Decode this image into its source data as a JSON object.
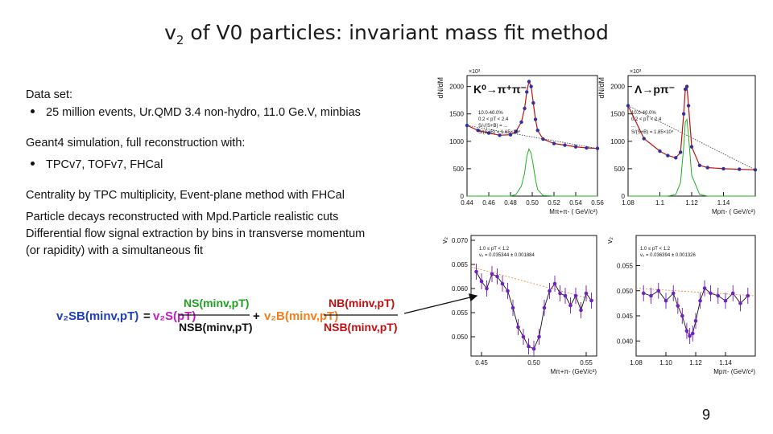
{
  "slide": {
    "title_prefix": "v",
    "title_sub": "2",
    "title_rest": " of V0 particles: invariant mass fit method",
    "page_number": "9"
  },
  "text": {
    "dataset_heading": "Data set:",
    "dataset_bullet": "25 million events, Ur.QMD 3.4 non-hydro, 11.0 Ge.V, minbias",
    "geant_heading": "Geant4 simulation, full reconstruction with:",
    "geant_bullet": "TPCv7, TOFv7, FHCal",
    "centrality": "Centrality by TPC multiplicity, Event-plane method with FHCal",
    "decays": "Particle decays reconstructed with Mpd.Particle realistic cuts",
    "flow_line1": "Differential flow signal extraction by bins in transverse momentum",
    "flow_line2": "(or rapidity) with a simultaneous fit"
  },
  "formula": {
    "lhs": "v₂SB(minv,pT)",
    "term1": "v₂S(pT)",
    "frac1_num": "NS(minv,pT)",
    "frac1_den": "NSB(minv,pT)",
    "plus": "+",
    "term2": "v₂B(minv,pT)",
    "frac2_num": "NB(minv,pT)",
    "frac2_den": "NSB(minv,pT)"
  },
  "chart_data": [
    {
      "type": "line",
      "panel": "K0 mass",
      "exponent": "×10³",
      "ylabel": "dN/dM",
      "xlabel": "Mπ+π- ( GeV/c²)",
      "title": "K⁰→π⁺π⁻",
      "xlim": [
        0.44,
        0.56
      ],
      "ylim": [
        0,
        2200
      ],
      "xticks": [
        "0.44",
        "0.46",
        "0.48",
        "0.50",
        "0.52",
        "0.54",
        "0.56"
      ],
      "yticks": [
        "0",
        "500",
        "1000",
        "1500",
        "2000"
      ],
      "x": [
        0.44,
        0.45,
        0.46,
        0.47,
        0.48,
        0.485,
        0.49,
        0.493,
        0.495,
        0.497,
        0.499,
        0.501,
        0.503,
        0.505,
        0.51,
        0.52,
        0.53,
        0.54,
        0.55,
        0.56
      ],
      "series": [
        {
          "values": [
            1290,
            1200,
            1150,
            1110,
            1120,
            1180,
            1350,
            1600,
            1900,
            2090,
            2000,
            1700,
            1400,
            1200,
            1040,
            960,
            930,
            900,
            880,
            870
          ]
        },
        {
          "values": [
            0,
            0,
            0,
            0,
            0,
            30,
            180,
            420,
            720,
            860,
            780,
            560,
            300,
            120,
            10,
            0,
            0,
            0,
            0,
            0
          ]
        }
      ]
    },
    {
      "type": "line",
      "panel": "Lambda mass",
      "exponent": "×10³",
      "ylabel": "dN/dM",
      "xlabel": "Mpπ- ( GeV/c²)",
      "title": "Λ→pπ⁻",
      "xlim": [
        1.08,
        1.16
      ],
      "ylim": [
        0,
        2200
      ],
      "xticks": [
        "1.08",
        "1.1",
        "1.12",
        "1.14"
      ],
      "yticks": [
        "0",
        "500",
        "1000",
        "1500",
        "2000"
      ],
      "x": [
        1.08,
        1.09,
        1.1,
        1.105,
        1.11,
        1.113,
        1.115,
        1.116,
        1.117,
        1.118,
        1.12,
        1.125,
        1.13,
        1.14,
        1.15,
        1.16
      ],
      "series": [
        {
          "values": [
            1650,
            1050,
            820,
            740,
            700,
            800,
            1500,
            1950,
            2000,
            1650,
            900,
            560,
            520,
            500,
            490,
            480
          ]
        },
        {
          "values": [
            0,
            0,
            0,
            0,
            30,
            250,
            900,
            1350,
            1400,
            1100,
            380,
            30,
            0,
            0,
            0,
            0
          ]
        }
      ]
    },
    {
      "type": "scatter",
      "panel": "K0 v2",
      "ylabel": "v₂",
      "xlabel": "Mπ+π- (GeV/c²)",
      "xlim": [
        0.44,
        0.56
      ],
      "ylim": [
        0.046,
        0.071
      ],
      "xticks": [
        "0.45",
        "0.50",
        "0.55"
      ],
      "yticks": [
        "0.050",
        "0.055",
        "0.060",
        "0.065",
        "0.070"
      ],
      "x": [
        0.445,
        0.45,
        0.455,
        0.46,
        0.465,
        0.47,
        0.475,
        0.48,
        0.485,
        0.49,
        0.495,
        0.5,
        0.505,
        0.51,
        0.515,
        0.52,
        0.525,
        0.53,
        0.535,
        0.54,
        0.545,
        0.55,
        0.555
      ],
      "series": [
        {
          "values": [
            0.0635,
            0.0615,
            0.06,
            0.063,
            0.0625,
            0.061,
            0.0595,
            0.056,
            0.052,
            0.05,
            0.048,
            0.0475,
            0.05,
            0.056,
            0.0595,
            0.061,
            0.059,
            0.0585,
            0.0565,
            0.0585,
            0.0555,
            0.059,
            0.0575
          ]
        }
      ]
    },
    {
      "type": "scatter",
      "panel": "Lambda v2",
      "ylabel": "v₂",
      "xlabel": "Mpπ- (GeV/c²)",
      "xlim": [
        1.08,
        1.16
      ],
      "ylim": [
        0.037,
        0.061
      ],
      "xticks": [
        "1.08",
        "1.10",
        "1.12",
        "1.14"
      ],
      "yticks": [
        "0.040",
        "0.045",
        "0.050",
        "0.055"
      ],
      "x": [
        1.085,
        1.09,
        1.095,
        1.1,
        1.105,
        1.108,
        1.111,
        1.114,
        1.116,
        1.118,
        1.12,
        1.123,
        1.126,
        1.13,
        1.135,
        1.14,
        1.145,
        1.15,
        1.155
      ],
      "series": [
        {
          "values": [
            0.0495,
            0.049,
            0.05,
            0.048,
            0.0495,
            0.047,
            0.045,
            0.042,
            0.041,
            0.0415,
            0.044,
            0.048,
            0.0505,
            0.0495,
            0.049,
            0.048,
            0.0495,
            0.0475,
            0.049
          ]
        }
      ]
    }
  ],
  "stat_boxes": {
    "k0_mass": [
      "10.0-40.0%",
      "0.2 < pT < 2.4",
      "S/√(S+B) = ...",
      "S/(S+B) = 1.65×10⁴"
    ],
    "lambda_mass": [
      "10.0-40.0%",
      "0.2 < pT < 2.4",
      "...",
      "S/(S+B) = 1.85×10⁴"
    ],
    "k0_v2": [
      "1.0 ≤ pT < 1.2",
      "v₂ = 0.035344 ± 0.001884"
    ],
    "lambda_v2": [
      "1.0 ≤ pT < 1.2",
      "v₂ = 0.036394 ± 0.001326"
    ]
  }
}
